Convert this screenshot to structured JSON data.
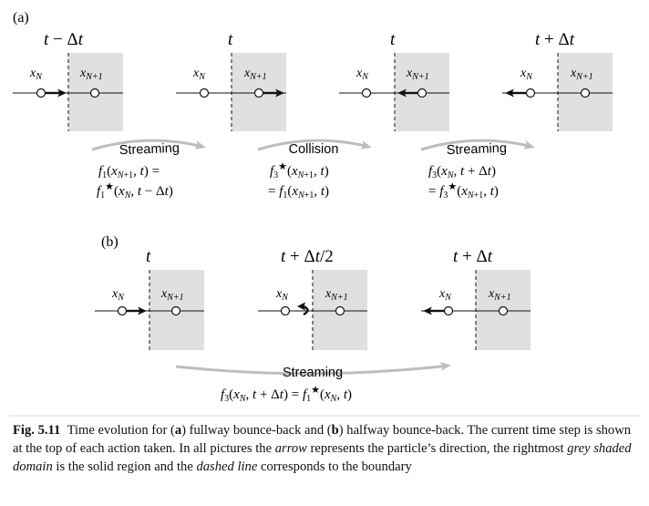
{
  "panel_a": {
    "label": "(a)",
    "frames": [
      {
        "time": "t − Δt",
        "direction": "right"
      },
      {
        "time": "t",
        "direction": "right"
      },
      {
        "time": "t",
        "direction": "left"
      },
      {
        "time": "t + Δt",
        "direction": "left"
      }
    ],
    "transitions": [
      {
        "action": "Streaming",
        "eq_line1": "f₁(x_{N+1}, t) =",
        "eq_line2": "f₁*(x_N, t − Δt)"
      },
      {
        "action": "Collision",
        "eq_line1": "f₃*(x_{N+1}, t)",
        "eq_line2": "= f₁(x_{N+1}, t)"
      },
      {
        "action": "Streaming",
        "eq_line1": "f₃(x_N, t + Δt)",
        "eq_line2": "= f₃*(x_{N+1}, t)"
      }
    ]
  },
  "panel_b": {
    "label": "(b)",
    "frames": [
      {
        "time": "t",
        "direction": "right"
      },
      {
        "time": "t + Δt/2",
        "direction": "bounce"
      },
      {
        "time": "t + Δt",
        "direction": "left"
      }
    ],
    "transition": {
      "action": "Streaming",
      "equation": "f₃(x_N, t + Δt) = f₁*(x_N, t)"
    }
  },
  "node_labels": {
    "left": "x_N",
    "right": "x_{N+1}"
  },
  "caption": {
    "fig_label": "Fig. 5.11",
    "part1": "Time evolution for (",
    "a": "a",
    "part2": ") fullway bounce-back and (",
    "b": "b",
    "part3": ") halfway bounce-back. The current time step is shown at the top of each action taken. In all pictures the ",
    "arrow": "arrow",
    "part4": " represents the particle’s direction, the rightmost ",
    "grey": "grey shaded domain",
    "part5": " is the solid region and the ",
    "dashed": "dashed line",
    "part6": " corresponds to the boundary"
  },
  "colors": {
    "solid_region": "#e0e0e0",
    "curve_arrow": "#bdbdbd",
    "ink": "#111111"
  }
}
